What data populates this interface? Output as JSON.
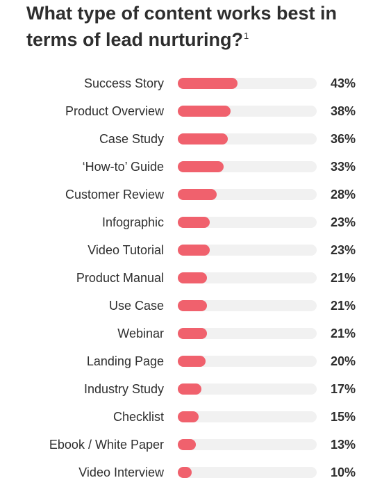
{
  "title": "What type of content works best in terms of lead nurturing?",
  "footnote_marker": "1",
  "colors": {
    "bar": "#f0616d",
    "track": "#f1f1f1",
    "text": "#2e2e2e"
  },
  "chart_data": {
    "type": "bar",
    "orientation": "horizontal",
    "xlim": [
      0,
      100
    ],
    "categories": [
      "Success Story",
      "Product Overview",
      "Case Study",
      "‘How-to’ Guide",
      "Customer Review",
      "Infographic",
      "Video Tutorial",
      "Product Manual",
      "Use Case",
      "Webinar",
      "Landing Page",
      "Industry Study",
      "Checklist",
      "Ebook / White Paper",
      "Video Interview"
    ],
    "values": [
      43,
      38,
      36,
      33,
      28,
      23,
      23,
      21,
      21,
      21,
      20,
      17,
      15,
      13,
      10
    ],
    "value_labels": [
      "43%",
      "38%",
      "36%",
      "33%",
      "28%",
      "23%",
      "23%",
      "21%",
      "21%",
      "21%",
      "20%",
      "17%",
      "15%",
      "13%",
      "10%"
    ]
  }
}
